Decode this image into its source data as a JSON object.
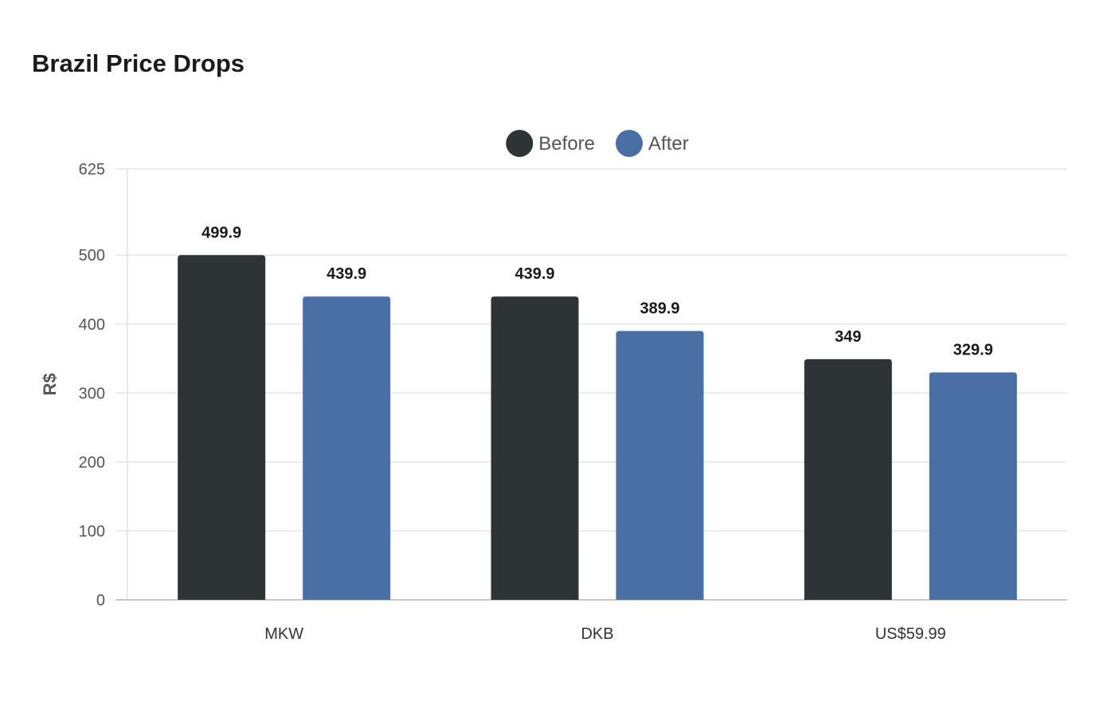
{
  "chart_data": {
    "type": "bar",
    "title": "Brazil Price Drops",
    "xlabel": "",
    "ylabel": "R$",
    "categories": [
      "MKW",
      "DKB",
      "US$59.99"
    ],
    "series": [
      {
        "name": "Before",
        "values": [
          499.9,
          439.9,
          349
        ],
        "color": "#2e3436"
      },
      {
        "name": "After",
        "values": [
          439.9,
          389.9,
          329.9
        ],
        "color": "#4a6fa5"
      }
    ],
    "ylim": [
      0,
      625
    ],
    "yticks": [
      0,
      100,
      200,
      300,
      400,
      500,
      625
    ],
    "ytick_labels": [
      "0",
      "100",
      "200",
      "300",
      "400",
      "500",
      "625"
    ],
    "value_labels": [
      [
        "499.9",
        "439.9",
        "349"
      ],
      [
        "439.9",
        "389.9",
        "329.9"
      ]
    ],
    "grid": true,
    "legend_position": "top-center"
  }
}
